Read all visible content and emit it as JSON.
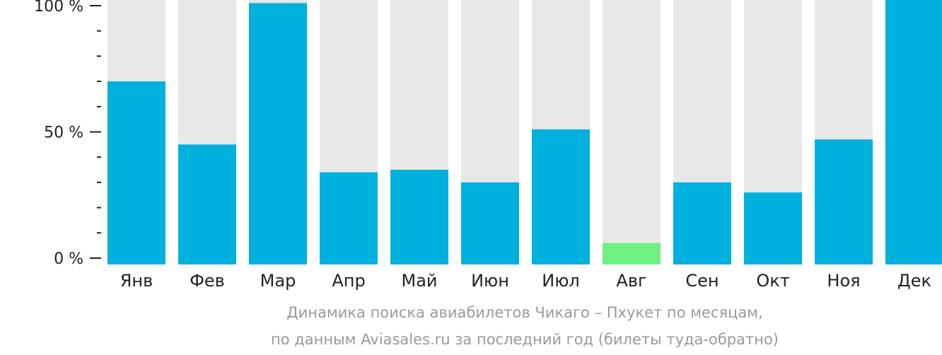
{
  "chart_data": {
    "type": "bar",
    "categories": [
      "Янв",
      "Фев",
      "Мар",
      "Апр",
      "Май",
      "Июн",
      "Июл",
      "Авг",
      "Сен",
      "Окт",
      "Ноя",
      "Дек"
    ],
    "values": [
      70,
      45,
      101,
      34,
      35,
      30,
      51,
      6,
      30,
      26,
      47,
      103
    ],
    "highlight_index": 7,
    "ylim": [
      0,
      100
    ],
    "yticks": [
      "0 %",
      "50 %",
      "100 %"
    ],
    "y_tick_values": [
      0,
      50,
      100
    ],
    "minor_tick_step": 10,
    "colors": {
      "bar": "#00b0dd",
      "highlight": "#6ef083",
      "track": "#e8e8e8",
      "axis": "#222222"
    }
  },
  "caption": {
    "line1": "Динамика поиска авиабилетов Чикаго – Пхукет по месяцам,",
    "line2": "по данным Aviasales.ru за последний год (билеты туда-обратно)"
  }
}
